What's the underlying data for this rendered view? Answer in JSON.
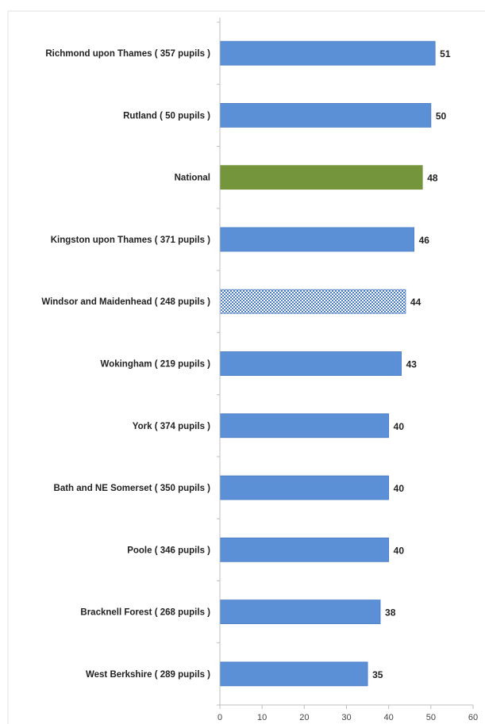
{
  "chart_data": {
    "type": "bar",
    "orientation": "horizontal",
    "categories": [
      "Richmond upon Thames ( 357 pupils )",
      "Rutland ( 50 pupils )",
      "National",
      "Kingston upon Thames ( 371 pupils )",
      "Windsor and Maidenhead ( 248 pupils )",
      "Wokingham ( 219 pupils )",
      "York ( 374 pupils )",
      "Bath and NE Somerset ( 350 pupils )",
      "Poole ( 346 pupils )",
      "Bracknell Forest ( 268 pupils )",
      "West Berkshire ( 289 pupils )"
    ],
    "values": [
      51,
      50,
      48,
      46,
      44,
      43,
      40,
      40,
      40,
      38,
      35
    ],
    "bar_styles": [
      "solid",
      "solid",
      "highlight",
      "solid",
      "hatched",
      "solid",
      "solid",
      "solid",
      "solid",
      "solid",
      "solid"
    ],
    "xlim": [
      0,
      60
    ],
    "xticks": [
      0,
      10,
      20,
      30,
      40,
      50,
      60
    ],
    "grid": false,
    "legend": "none",
    "title": "",
    "xlabel": "",
    "ylabel": ""
  },
  "colors": {
    "bar": "#5b8fd6",
    "bar_edge": "#4a7cc4",
    "highlight": "#74953b",
    "hatch": "#4a7cc4",
    "axis": "#bfbfbf"
  }
}
